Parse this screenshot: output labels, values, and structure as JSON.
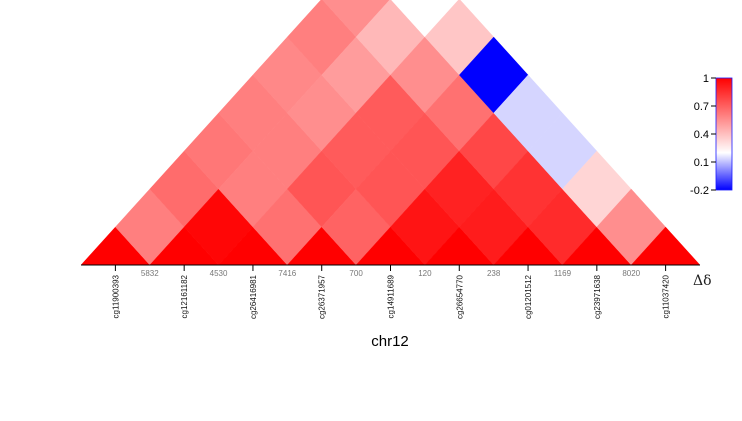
{
  "chart_data": {
    "type": "heatmap",
    "xlabel": "chr12",
    "legend_symbol": "Δδ",
    "highlight_color": "#e0201c",
    "probes": [
      {
        "name": "cg11900393",
        "highlight": false
      },
      {
        "name": "cg12161182",
        "highlight": false
      },
      {
        "name": "cg26416981",
        "highlight": false
      },
      {
        "name": "cg26371957",
        "highlight": false
      },
      {
        "name": "cg14911689",
        "highlight": true
      },
      {
        "name": "cg26654770",
        "highlight": false
      },
      {
        "name": "cg01201512",
        "highlight": false
      },
      {
        "name": "cg23971638",
        "highlight": false
      },
      {
        "name": "cg11037420",
        "highlight": false
      }
    ],
    "distances": [
      "5832",
      "4530",
      "7416",
      "700",
      "120",
      "238",
      "1169",
      "8020"
    ],
    "matrix": [
      [
        null,
        0.55,
        0.62,
        0.58,
        0.55,
        0.52,
        0.55,
        0.5,
        0.45
      ],
      [
        0.55,
        null,
        0.98,
        0.55,
        0.55,
        0.5,
        0.45,
        0.35,
        0.1
      ],
      [
        0.62,
        0.98,
        null,
        0.6,
        0.7,
        0.68,
        0.68,
        0.5,
        0.3
      ],
      [
        0.58,
        0.55,
        0.6,
        null,
        0.65,
        0.7,
        0.7,
        0.6,
        -0.2
      ],
      [
        0.55,
        0.55,
        0.7,
        0.65,
        null,
        0.93,
        0.88,
        0.75,
        0.05
      ],
      [
        0.52,
        0.5,
        0.68,
        0.7,
        0.93,
        null,
        0.9,
        0.82,
        0.05
      ],
      [
        0.55,
        0.45,
        0.68,
        0.7,
        0.88,
        0.9,
        null,
        0.85,
        0.25
      ],
      [
        0.5,
        0.35,
        0.5,
        0.6,
        0.75,
        0.82,
        0.85,
        null,
        0.5
      ],
      [
        0.45,
        0.1,
        0.3,
        -0.2,
        0.05,
        0.05,
        0.25,
        0.5,
        null
      ]
    ],
    "scale": {
      "min": -0.2,
      "max": 1,
      "ticks": [
        "1",
        "0.7",
        "0.4",
        "0.1",
        "-0.2"
      ],
      "low_color": "#0000ff",
      "mid_color": "#ffffff",
      "high_color": "#ff0000"
    }
  }
}
